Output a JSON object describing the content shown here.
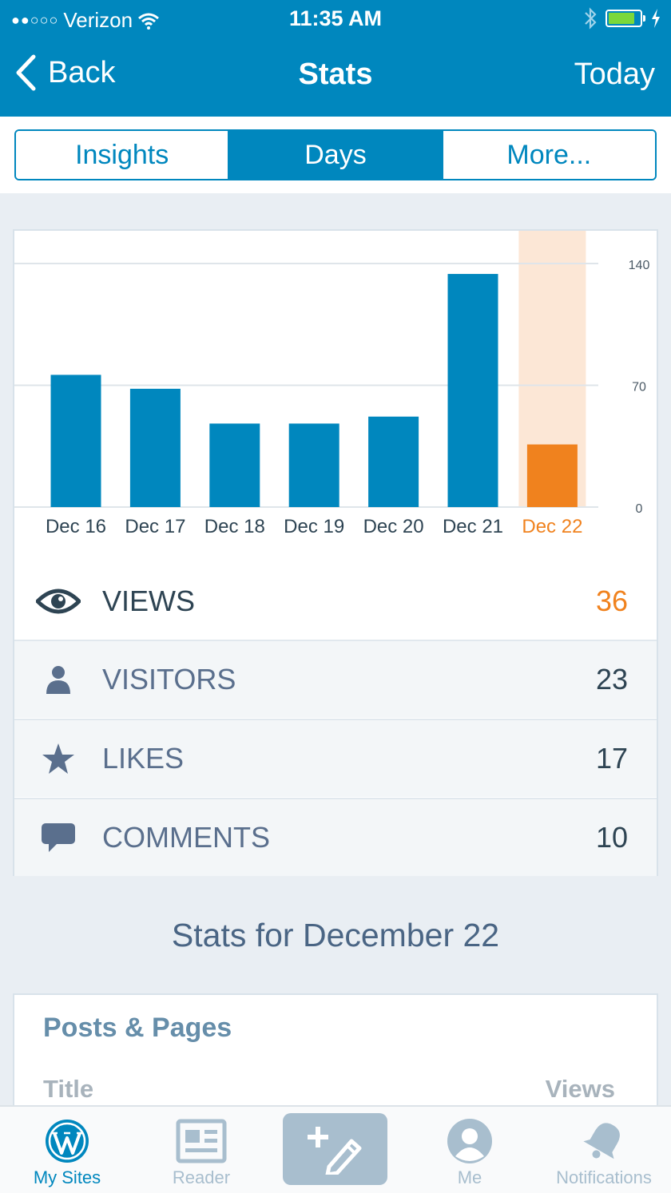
{
  "status_bar": {
    "carrier": "Verizon",
    "signal": "●●○○○",
    "time": "11:35 AM"
  },
  "nav": {
    "back_label": "Back",
    "title": "Stats",
    "right_label": "Today"
  },
  "segments": [
    {
      "label": "Insights",
      "active": false
    },
    {
      "label": "Days",
      "active": true
    },
    {
      "label": "More...",
      "active": false
    }
  ],
  "colors": {
    "brand": "#0087be",
    "highlight": "#f0821e",
    "highlight_band": "#fce7d6"
  },
  "chart_data": {
    "type": "bar",
    "categories": [
      "Dec 16",
      "Dec 17",
      "Dec 18",
      "Dec 19",
      "Dec 20",
      "Dec 21",
      "Dec 22"
    ],
    "values": [
      76,
      68,
      48,
      48,
      52,
      134,
      36
    ],
    "highlighted_index": 6,
    "yticks": [
      0,
      70,
      140
    ],
    "ylim": [
      0,
      140
    ],
    "grid": true,
    "title": "",
    "xlabel": "",
    "ylabel": ""
  },
  "stats": [
    {
      "icon": "eye-icon",
      "label": "VIEWS",
      "value": "36"
    },
    {
      "icon": "person-icon",
      "label": "VISITORS",
      "value": "23"
    },
    {
      "icon": "star-icon",
      "label": "LIKES",
      "value": "17"
    },
    {
      "icon": "comment-icon",
      "label": "COMMENTS",
      "value": "10"
    }
  ],
  "stats_for": "Stats for December 22",
  "posts": {
    "title": "Posts & Pages",
    "col_title": "Title",
    "col_views": "Views"
  },
  "tabs": [
    {
      "label": "My Sites",
      "icon": "wordpress-icon",
      "active": true
    },
    {
      "label": "Reader",
      "icon": "reader-icon",
      "active": false
    },
    {
      "label": "",
      "icon": "new-post-icon",
      "active": false
    },
    {
      "label": "Me",
      "icon": "me-icon",
      "active": false
    },
    {
      "label": "Notifications",
      "icon": "bell-icon",
      "active": false
    }
  ]
}
